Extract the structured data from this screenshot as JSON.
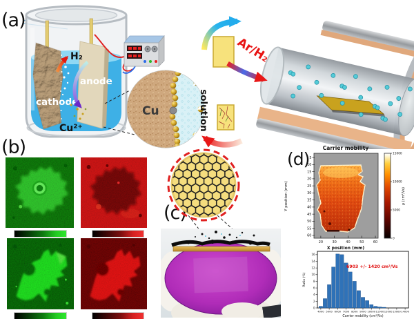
{
  "panel_labels": {
    "a": "(a)",
    "b": "(b)",
    "c": "(c)",
    "d": "(d)"
  },
  "panel_a": {
    "cathode": "cathode",
    "anode": "anode",
    "h2": "H₂",
    "cu_ion": "Cu²⁺",
    "cu": "Cu",
    "solution": "solution",
    "gas": "Ar/H₂"
  },
  "panel_d": {
    "map": {
      "title": "Carrier mobility",
      "xlabel": "X position (mm)",
      "ylabel": "Y position (mm)",
      "x_ticks": [
        20,
        30,
        40,
        50,
        60
      ],
      "y_ticks": [
        5,
        10,
        15,
        20,
        25,
        30,
        35,
        40,
        45,
        50,
        55,
        60
      ],
      "colorbar_ticks": [
        15000,
        10000,
        5000,
        0
      ],
      "colorbar_label": "μ (cm²/Vs)"
    },
    "histogram": {
      "xlabel": "Carrier mobility (cm²/Vs)",
      "ylabel": "Ratio (%)",
      "annotation": "6903 +/- 1420 cm²/Vs",
      "x_ticks": [
        4000,
        5000,
        6000,
        7000,
        8000,
        9000,
        10000,
        11000,
        12000,
        13000,
        14000
      ],
      "y_ticks": [
        0,
        2,
        4,
        6,
        8,
        10,
        12,
        14,
        16
      ]
    }
  },
  "colors": {
    "histogram_bar": "#2f72b8",
    "annotation_red": "#e01010",
    "solution_blue": "#3eb0e6",
    "copper_gold": "#e8c84a",
    "furnace_inner": "#e9b489",
    "wafer_purple": "#b02cb8",
    "fluorescence_green": "#2ee42e",
    "fluorescence_red": "#e02020"
  },
  "chart_data": [
    {
      "type": "heatmap",
      "title": "Carrier mobility",
      "xlabel": "X position (mm)",
      "ylabel": "Y position (mm)",
      "x_range": [
        15,
        62
      ],
      "y_range": [
        2,
        62
      ],
      "colorbar": {
        "label": "μ (cm²/Vs)",
        "min": 0,
        "max": 15000,
        "ticks": [
          0,
          5000,
          10000,
          15000
        ]
      },
      "description": "Irregular graphene-on-Cu sample covering about x 17-53 mm, y 10-57 mm on a gray background; mobility mostly 5000-12000 cm2/Vs (red-orange body, brighter yellow-white rim near the top edge, darker red toward the bottom)."
    },
    {
      "type": "bar",
      "xlabel": "Carrier mobility (cm²/Vs)",
      "ylabel": "Ratio (%)",
      "bin_width": 500,
      "bin_centers": [
        4000,
        4500,
        5000,
        5500,
        6000,
        6500,
        7000,
        7500,
        8000,
        8500,
        9000,
        9500,
        10000,
        10500,
        11000,
        11500
      ],
      "values": [
        0.5,
        2.8,
        7.0,
        12.3,
        16.2,
        16.0,
        13.5,
        10.8,
        8.0,
        5.2,
        3.2,
        2.2,
        1.0,
        0.5,
        0.3,
        0.2
      ],
      "xlim": [
        3600,
        14400
      ],
      "ylim": [
        0,
        17
      ],
      "annotation": "6903 +/- 1420 cm²/Vs",
      "grid": false,
      "legend": false
    }
  ]
}
